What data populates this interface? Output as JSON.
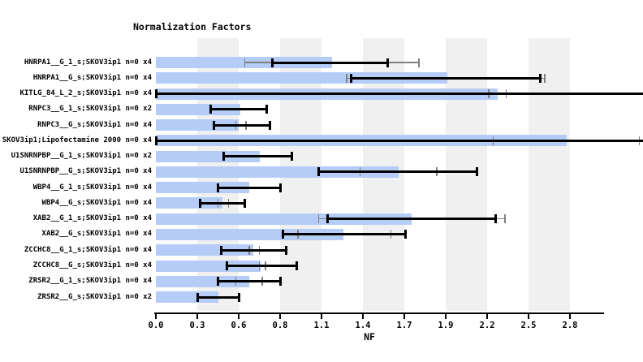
{
  "chart_data": {
    "type": "bar",
    "orientation": "horizontal",
    "title": "Normalization Factors",
    "xlabel": "NF",
    "xlim": [
      0.0,
      2.8
    ],
    "x_tick_labels": [
      "0.0",
      "0.3",
      "0.6",
      "0.8",
      "1.1",
      "1.4",
      "1.7",
      "1.9",
      "2.2",
      "2.5",
      "2.8"
    ],
    "grid": "alternating vertical gray/white bands between ticks",
    "legend": "none",
    "bar_color": "#b4ccf6",
    "band_color": "#f0f0f0",
    "error_bar_primary_color": "#000000",
    "error_bar_secondary_color": "#7f7f7f",
    "rows": [
      {
        "label": "HNRPA1__G_1_s;SKOV3ip1 n=0 x4",
        "nf": 1.19,
        "err_black": [
          0.79,
          1.57
        ],
        "err_gray": [
          0.6,
          1.78
        ]
      },
      {
        "label": "HNRPA1__G_s;SKOV3ip1 n=0 x4",
        "nf": 1.97,
        "err_black": [
          1.32,
          2.6
        ],
        "err_gray": [
          1.29,
          2.63
        ]
      },
      {
        "label": "KITLG_84_L_2_s;SKOV3ip1 n=0 x4",
        "nf": 2.31,
        "err_black": [
          0.0,
          3.3
        ],
        "err_gray": [
          2.25,
          2.37
        ],
        "err_black_clipped_right": true
      },
      {
        "label": "RNPC3__G_1_s;SKOV3ip1 n=0 x2",
        "nf": 0.57,
        "err_black": [
          0.37,
          0.75
        ],
        "err_gray": null
      },
      {
        "label": "RNPC3__G_s;SKOV3ip1 n=0 x4",
        "nf": 0.56,
        "err_black": [
          0.39,
          0.77
        ],
        "err_gray": [
          0.54,
          0.61
        ]
      },
      {
        "label": "SKOV3ip1;Lipofectamine 2000 n=0 x4",
        "nf": 2.78,
        "err_black": [
          0.0,
          3.3
        ],
        "err_gray": [
          2.28,
          3.27
        ],
        "err_black_clipped_right": true
      },
      {
        "label": "U1SNRNPBP__G_1_s;SKOV3ip1 n=0 x2",
        "nf": 0.7,
        "err_black": [
          0.46,
          0.92
        ],
        "err_gray": null
      },
      {
        "label": "U1SNRNPBP__G_s;SKOV3ip1 n=0 x4",
        "nf": 1.64,
        "err_black": [
          1.1,
          2.17
        ],
        "err_gray": [
          1.38,
          1.9
        ]
      },
      {
        "label": "WBP4__G_1_s;SKOV3ip1 n=0 x4",
        "nf": 0.63,
        "err_black": [
          0.42,
          0.84
        ],
        "err_gray": null
      },
      {
        "label": "WBP4__G_s;SKOV3ip1 n=0 x4",
        "nf": 0.45,
        "err_black": [
          0.3,
          0.6
        ],
        "err_gray": [
          0.42,
          0.49
        ]
      },
      {
        "label": "XAB2__G_1_s;SKOV3ip1 n=0 x4",
        "nf": 1.73,
        "err_black": [
          1.16,
          2.3
        ],
        "err_gray": [
          1.1,
          2.36
        ]
      },
      {
        "label": "XAB2__G_s;SKOV3ip1 n=0 x4",
        "nf": 1.27,
        "err_black": [
          0.86,
          1.69
        ],
        "err_gray": [
          0.96,
          1.59
        ]
      },
      {
        "label": "ZCCHC8__G_1_s;SKOV3ip1 n=0 x4",
        "nf": 0.66,
        "err_black": [
          0.44,
          0.88
        ],
        "err_gray": [
          0.63,
          0.7
        ]
      },
      {
        "label": "ZCCHC8__G_s;SKOV3ip1 n=0 x4",
        "nf": 0.71,
        "err_black": [
          0.48,
          0.95
        ],
        "err_gray": [
          0.7,
          0.74
        ]
      },
      {
        "label": "ZRSR2__G_1_s;SKOV3ip1 n=0 x4",
        "nf": 0.63,
        "err_black": [
          0.42,
          0.84
        ],
        "err_gray": [
          0.54,
          0.72
        ]
      },
      {
        "label": "ZRSR2__G_s;SKOV3ip1 n=0 x2",
        "nf": 0.42,
        "err_black": [
          0.28,
          0.56
        ],
        "err_gray": null
      }
    ]
  }
}
